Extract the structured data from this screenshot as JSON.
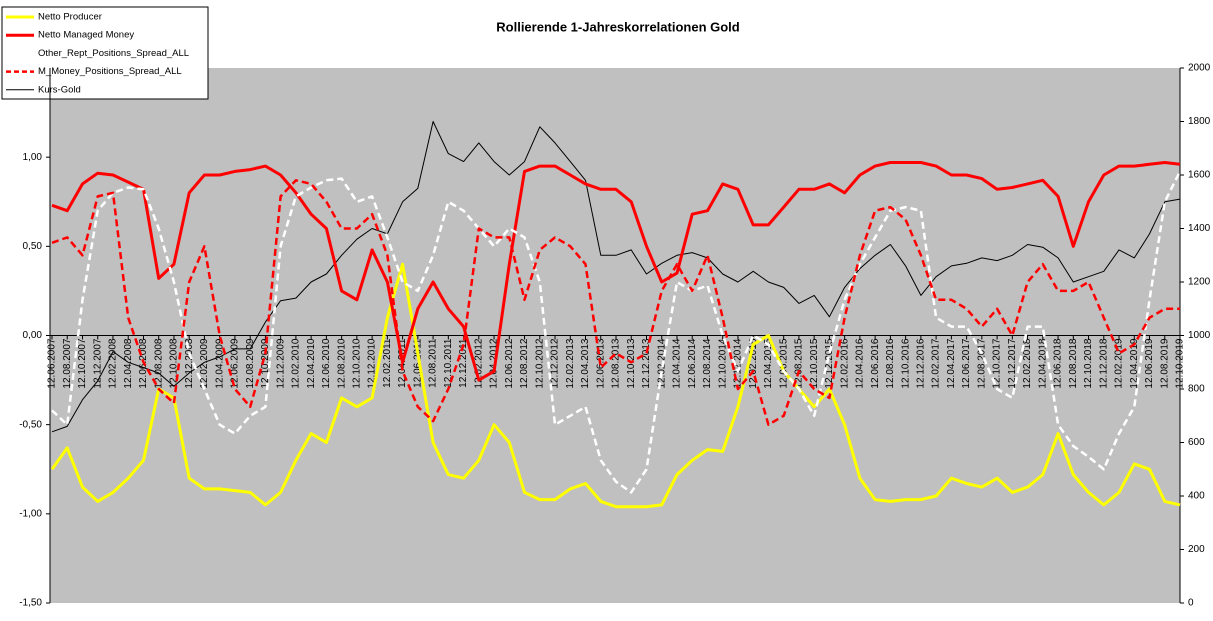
{
  "chart_data": {
    "type": "line",
    "title": "Rollierende 1-Jahreskorrelationen Gold",
    "categories": [
      "12.06.2007",
      "12.08.2007",
      "12.10.2007",
      "12.12.2007",
      "12.02.2008",
      "12.04.2008",
      "12.06.2008",
      "12.08.2008",
      "12.10.2008",
      "12.12.2008",
      "12.02.2009",
      "12.04.2009",
      "12.06.2009",
      "12.08.2009",
      "12.10.2009",
      "12.12.2009",
      "12.02.2010",
      "12.04.2010",
      "12.06.2010",
      "12.08.2010",
      "12.10.2010",
      "12.12.2010",
      "12.02.2011",
      "12.04.2011",
      "12.06.2011",
      "12.08.2011",
      "12.10.2011",
      "12.12.2011",
      "12.02.2012",
      "12.04.2012",
      "12.06.2012",
      "12.08.2012",
      "12.10.2012",
      "12.12.2012",
      "12.02.2013",
      "12.04.2013",
      "12.06.2013",
      "12.08.2013",
      "12.10.2013",
      "12.12.2013",
      "12.02.2014",
      "12.04.2014",
      "12.06.2014",
      "12.08.2014",
      "12.10.2014",
      "12.12.2014",
      "12.02.2015",
      "12.04.2015",
      "12.06.2015",
      "12.08.2015",
      "12.10.2015",
      "12.12.2015",
      "12.02.2016",
      "12.04.2016",
      "12.06.2016",
      "12.08.2016",
      "12.10.2016",
      "12.12.2016",
      "12.02.2017",
      "12.04.2017",
      "12.06.2017",
      "12.08.2017",
      "12.10.2017",
      "12.12.2017",
      "12.02.2018",
      "12.04.2018",
      "12.06.2018",
      "12.08.2018",
      "12.10.2018",
      "12.12.2018",
      "12.02.2019",
      "12.04.2019",
      "12.06.2019",
      "12.08.2019",
      "12.10.2019"
    ],
    "series": [
      {
        "name": "Netto Producer",
        "color": "#ffff00",
        "width": 3,
        "dashed": false,
        "values": [
          -0.75,
          -0.63,
          -0.85,
          -0.93,
          -0.88,
          -0.8,
          -0.7,
          -0.3,
          -0.35,
          -0.8,
          -0.86,
          -0.86,
          -0.87,
          -0.88,
          -0.95,
          -0.88,
          -0.7,
          -0.55,
          -0.6,
          -0.35,
          -0.4,
          -0.35,
          0.1,
          0.4,
          -0.1,
          -0.6,
          -0.78,
          -0.8,
          -0.7,
          -0.5,
          -0.6,
          -0.88,
          -0.92,
          -0.92,
          -0.86,
          -0.83,
          -0.93,
          -0.96,
          -0.96,
          -0.96,
          -0.95,
          -0.78,
          -0.7,
          -0.64,
          -0.65,
          -0.4,
          -0.05,
          0,
          -0.2,
          -0.3,
          -0.4,
          -0.3,
          -0.5,
          -0.8,
          -0.92,
          -0.93,
          -0.92,
          -0.92,
          -0.9,
          -0.8,
          -0.83,
          -0.85,
          -0.8,
          -0.88,
          -0.85,
          -0.78,
          -0.55,
          -0.78,
          -0.88,
          -0.95,
          -0.88,
          -0.72,
          -0.75,
          -0.93,
          -0.95
        ]
      },
      {
        "name": "Netto Managed Money",
        "color": "#ff0000",
        "width": 3,
        "dashed": false,
        "values": [
          0.73,
          0.7,
          0.85,
          0.91,
          0.9,
          0.86,
          0.82,
          0.32,
          0.4,
          0.8,
          0.9,
          0.9,
          0.92,
          0.93,
          0.95,
          0.9,
          0.8,
          0.68,
          0.6,
          0.25,
          0.2,
          0.48,
          0.3,
          -0.15,
          0.15,
          0.3,
          0.15,
          0.05,
          -0.25,
          -0.2,
          0.4,
          0.92,
          0.95,
          0.95,
          0.9,
          0.85,
          0.82,
          0.82,
          0.75,
          0.5,
          0.3,
          0.35,
          0.68,
          0.7,
          0.85,
          0.82,
          0.62,
          0.62,
          0.72,
          0.82,
          0.82,
          0.85,
          0.8,
          0.9,
          0.95,
          0.97,
          0.97,
          0.97,
          0.95,
          0.9,
          0.9,
          0.88,
          0.82,
          0.83,
          0.85,
          0.87,
          0.78,
          0.5,
          0.75,
          0.9,
          0.95,
          0.95,
          0.96,
          0.97,
          0.96
        ]
      },
      {
        "name": "Other_Rept_Positions_Spread_ALL",
        "color": "#ffffff",
        "width": 2.5,
        "dashed": true,
        "values": [
          -0.42,
          -0.5,
          0.2,
          0.7,
          0.8,
          0.83,
          0.82,
          0.6,
          0.3,
          -0.1,
          -0.3,
          -0.5,
          -0.55,
          -0.45,
          -0.4,
          0.5,
          0.78,
          0.83,
          0.87,
          0.88,
          0.75,
          0.78,
          0.55,
          0.3,
          0.25,
          0.45,
          0.75,
          0.7,
          0.6,
          0.5,
          0.6,
          0.55,
          0.3,
          -0.5,
          -0.45,
          -0.4,
          -0.7,
          -0.82,
          -0.88,
          -0.75,
          -0.2,
          0.3,
          0.25,
          0.28,
          0,
          -0.2,
          0,
          -0.05,
          -0.2,
          -0.3,
          -0.45,
          -0.1,
          0.2,
          0.4,
          0.55,
          0.7,
          0.72,
          0.7,
          0.1,
          0.05,
          0.05,
          -0.1,
          -0.3,
          -0.35,
          0.05,
          0.05,
          -0.5,
          -0.62,
          -0.68,
          -0.75,
          -0.55,
          -0.4,
          0.2,
          0.75,
          0.92
        ]
      },
      {
        "name": "M_Money_Positions_Spread_ALL",
        "color": "#ff0000",
        "width": 2.5,
        "dashed": true,
        "values": [
          0.52,
          0.55,
          0.45,
          0.78,
          0.8,
          0.1,
          -0.15,
          -0.3,
          -0.38,
          0.3,
          0.5,
          0,
          -0.3,
          -0.4,
          -0.1,
          0.78,
          0.87,
          0.85,
          0.75,
          0.6,
          0.6,
          0.68,
          0.45,
          -0.2,
          -0.4,
          -0.48,
          -0.3,
          -0.05,
          0.6,
          0.55,
          0.55,
          0.2,
          0.48,
          0.55,
          0.5,
          0.4,
          -0.18,
          -0.1,
          -0.15,
          -0.1,
          0.25,
          0.4,
          0.25,
          0.45,
          0.1,
          -0.3,
          -0.2,
          -0.5,
          -0.45,
          -0.2,
          -0.3,
          -0.35,
          0.1,
          0.45,
          0.7,
          0.72,
          0.65,
          0.45,
          0.2,
          0.2,
          0.15,
          0.05,
          0.15,
          0,
          0.3,
          0.4,
          0.25,
          0.25,
          0.3,
          0.1,
          -0.1,
          -0.05,
          0.1,
          0.15,
          0.15
        ]
      },
      {
        "name": "Kurs-Gold",
        "color": "#000000",
        "width": 1,
        "dashed": false,
        "axis": "y2",
        "values": [
          640,
          660,
          760,
          830,
          940,
          900,
          880,
          860,
          810,
          860,
          900,
          920,
          950,
          950,
          1050,
          1130,
          1140,
          1200,
          1230,
          1300,
          1360,
          1400,
          1380,
          1500,
          1550,
          1800,
          1680,
          1650,
          1720,
          1650,
          1600,
          1650,
          1780,
          1720,
          1650,
          1580,
          1300,
          1300,
          1320,
          1230,
          1270,
          1300,
          1310,
          1290,
          1230,
          1200,
          1240,
          1200,
          1180,
          1120,
          1150,
          1070,
          1180,
          1250,
          1300,
          1340,
          1260,
          1150,
          1220,
          1260,
          1270,
          1290,
          1280,
          1300,
          1340,
          1330,
          1290,
          1200,
          1220,
          1240,
          1320,
          1290,
          1380,
          1500,
          1510
        ]
      }
    ],
    "ylim": [
      -1.5,
      1.5
    ],
    "yticks": [
      {
        "value": -1.5,
        "label": "-1,50"
      },
      {
        "value": -1,
        "label": "-1,00"
      },
      {
        "value": -0.5,
        "label": "-0,50"
      },
      {
        "value": 0,
        "label": "0,00"
      },
      {
        "value": 0.5,
        "label": "0,50"
      },
      {
        "value": 1,
        "label": "1,00"
      }
    ],
    "y2lim": [
      0,
      2000
    ],
    "y2ticks": [
      0,
      200,
      400,
      600,
      800,
      1000,
      1200,
      1400,
      1600,
      1800,
      2000
    ],
    "legend": "upper left",
    "plot_background": "#c0c0c0"
  }
}
